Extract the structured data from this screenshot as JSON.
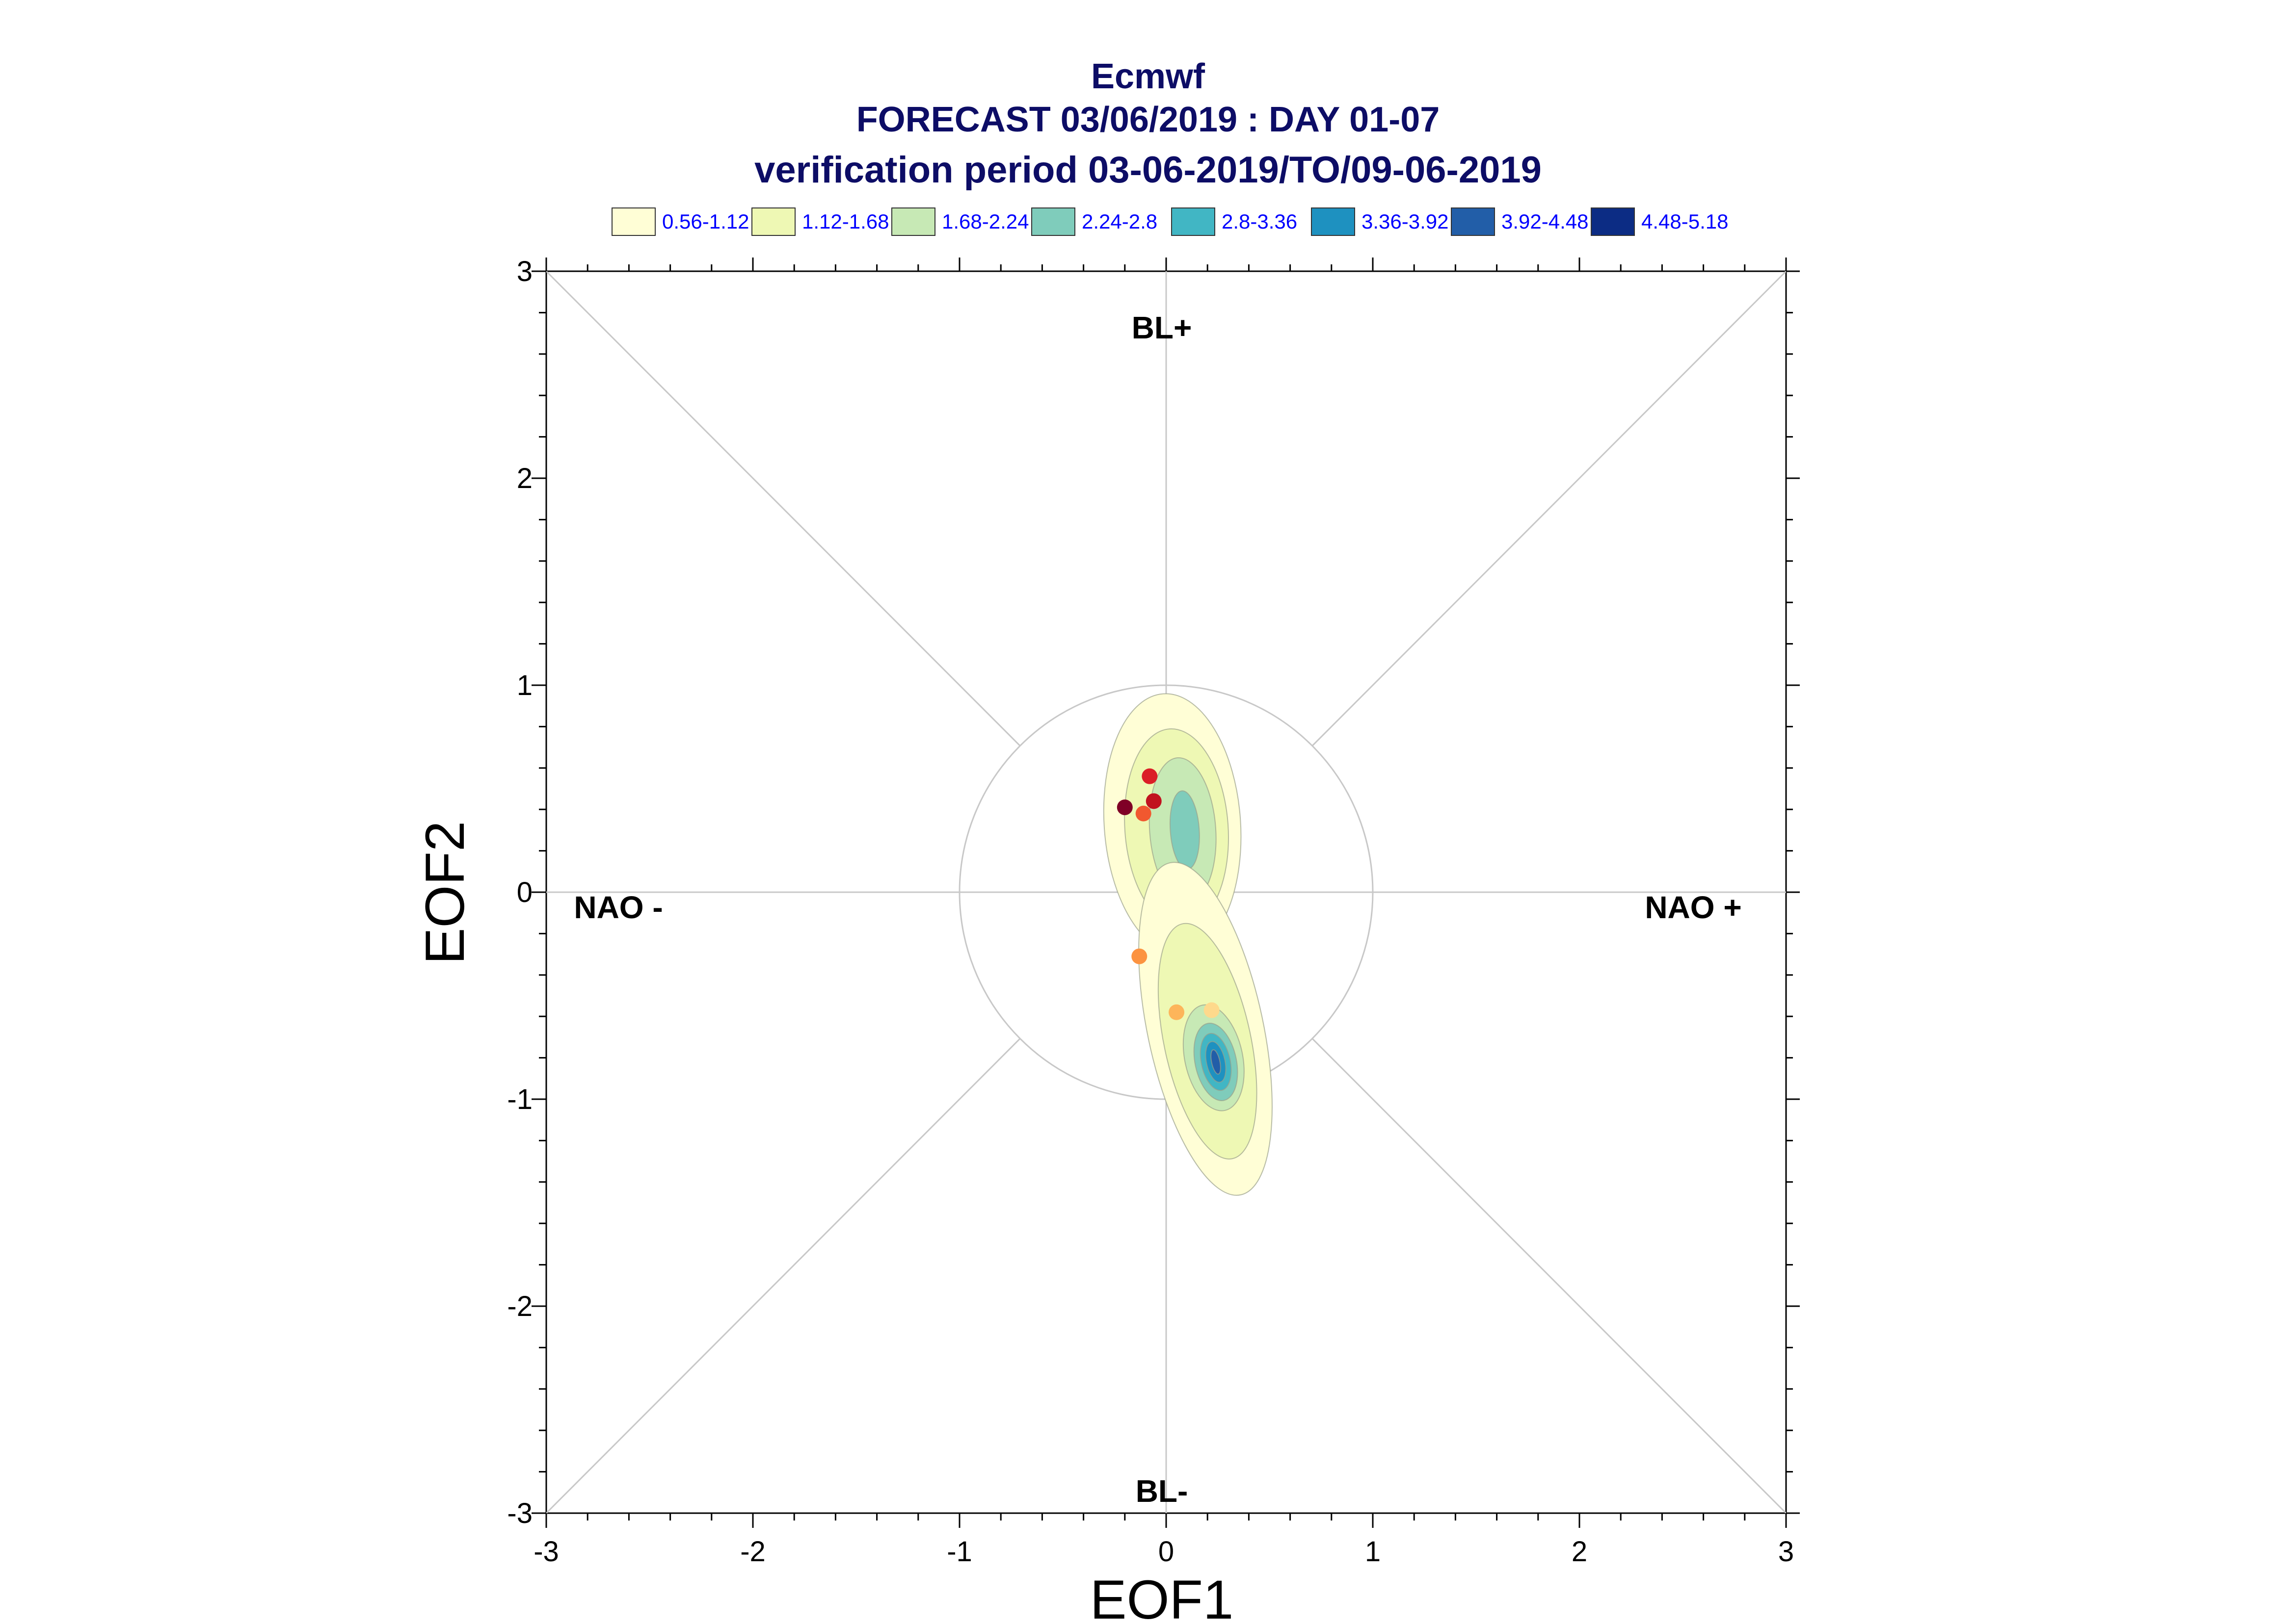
{
  "chart_data": {
    "type": "scatter",
    "title_lines": [
      "Ecmwf",
      "FORECAST 03/06/2019 : DAY 01-07",
      "verification period 03-06-2019/TO/09-06-2019"
    ],
    "xlabel": "EOF1",
    "ylabel": "EOF2",
    "xlim": [
      -3,
      3
    ],
    "ylim": [
      -3,
      3
    ],
    "xticks": [
      -3,
      -2,
      -1,
      0,
      1,
      2,
      3
    ],
    "yticks": [
      -3,
      -2,
      -1,
      0,
      1,
      2,
      3
    ],
    "regime_labels": {
      "top": "BL+",
      "bottom": "BL-",
      "left": "NAO -",
      "right": "NAO +"
    },
    "unit_circle_radius": 1,
    "density_legend": [
      {
        "label": "0.56-1.12",
        "color": "#fffed6"
      },
      {
        "label": "1.12-1.68",
        "color": "#eef8b4"
      },
      {
        "label": "1.68-2.24",
        "color": "#c7e9b5"
      },
      {
        "label": "2.24-2.8",
        "color": "#7fccbb"
      },
      {
        "label": "2.8-3.36",
        "color": "#41b6c4"
      },
      {
        "label": "3.36-3.92",
        "color": "#1e91c0"
      },
      {
        "label": "3.92-4.48",
        "color": "#225ea8"
      },
      {
        "label": "4.48-5.18",
        "color": "#0c2c84"
      }
    ],
    "density_clusters": [
      {
        "cx": 0.09,
        "cy": 0.3,
        "levels": [
          {
            "rx": 0.33,
            "ry": 0.63,
            "cx": 0.03,
            "cy": 0.33
          },
          {
            "rx": 0.25,
            "ry": 0.48,
            "cx": 0.05,
            "cy": 0.31
          },
          {
            "rx": 0.16,
            "ry": 0.35,
            "cx": 0.08,
            "cy": 0.3
          },
          {
            "rx": 0.07,
            "ry": 0.19,
            "cx": 0.09,
            "cy": 0.3
          }
        ]
      },
      {
        "cx": 0.24,
        "cy": -0.82,
        "levels": [
          {
            "rx": 0.28,
            "ry": 0.82,
            "cx": 0.19,
            "cy": -0.66
          },
          {
            "rx": 0.21,
            "ry": 0.58,
            "cx": 0.2,
            "cy": -0.72
          },
          {
            "rx": 0.14,
            "ry": 0.26,
            "cx": 0.23,
            "cy": -0.8
          },
          {
            "rx": 0.1,
            "ry": 0.19,
            "cx": 0.24,
            "cy": -0.82
          },
          {
            "rx": 0.07,
            "ry": 0.14,
            "cx": 0.24,
            "cy": -0.82
          },
          {
            "rx": 0.045,
            "ry": 0.1,
            "cx": 0.24,
            "cy": -0.82
          },
          {
            "rx": 0.02,
            "ry": 0.06,
            "cx": 0.24,
            "cy": -0.82
          }
        ]
      }
    ],
    "points": [
      {
        "x": -0.2,
        "y": 0.41,
        "color": "#7f0026"
      },
      {
        "x": -0.08,
        "y": 0.56,
        "color": "#db1e27"
      },
      {
        "x": -0.06,
        "y": 0.44,
        "color": "#c1121f"
      },
      {
        "x": -0.11,
        "y": 0.38,
        "color": "#f1582f"
      },
      {
        "x": -0.13,
        "y": -0.31,
        "color": "#fc9341"
      },
      {
        "x": 0.05,
        "y": -0.58,
        "color": "#fdb55a"
      },
      {
        "x": 0.22,
        "y": -0.57,
        "color": "#fed98c"
      }
    ]
  }
}
